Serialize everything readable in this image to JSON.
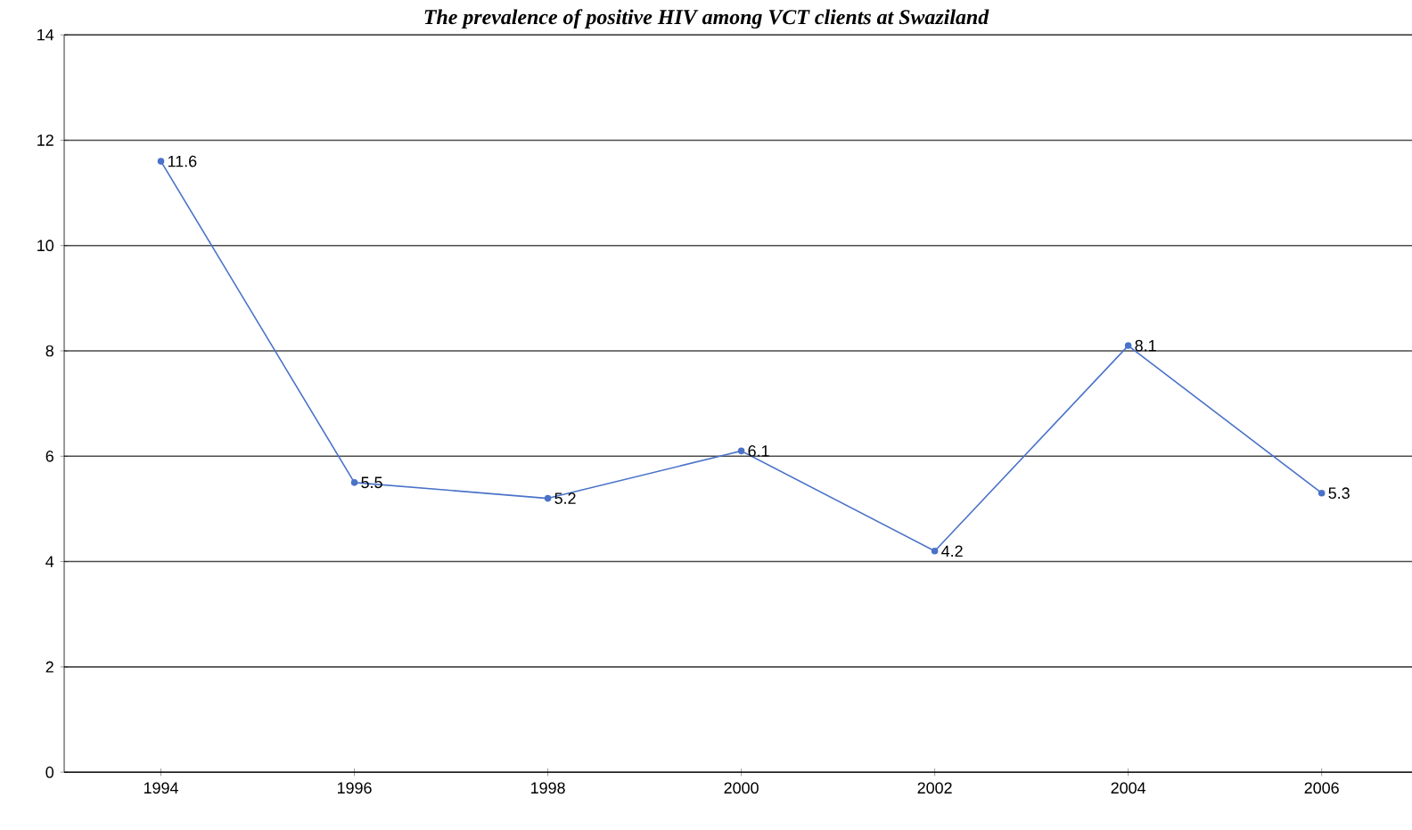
{
  "chart_data": {
    "type": "line",
    "title": "The prevalence of positive HIV among VCT clients at Swaziland",
    "categories": [
      "1994",
      "1996",
      "1998",
      "2000",
      "2002",
      "2004",
      "2006"
    ],
    "values": [
      11.6,
      5.5,
      5.2,
      6.1,
      4.2,
      8.1,
      5.3
    ],
    "color": "#4a72c8",
    "ylim": [
      0,
      14
    ],
    "yticks": [
      0,
      2,
      4,
      6,
      8,
      10,
      12,
      14
    ],
    "grid": "y",
    "marker": "circle",
    "data_labels": true
  }
}
